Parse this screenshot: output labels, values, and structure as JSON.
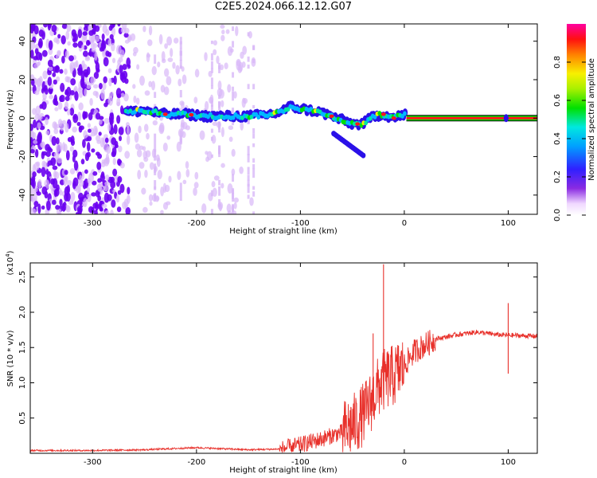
{
  "title": "C2E5.2024.066.12.12.G07",
  "colors": {
    "axis": "#000000",
    "snr_line": "#e8312b",
    "scatter_low": "#d8b8f8",
    "scatter_mid": "#6a00f0",
    "ridge": "#00b8ff",
    "peak": "#ff1818",
    "band_green": "#00e000"
  },
  "chart_data": [
    {
      "type": "heatmap",
      "name": "spectrogram",
      "xlabel": "Height of straight line (km)",
      "ylabel": "Frequency (Hz)",
      "xlim": [
        -360,
        128
      ],
      "ylim": [
        -50,
        49
      ],
      "x_ticks": [
        -300,
        -200,
        -100,
        0,
        100
      ],
      "y_ticks": [
        -40,
        -20,
        0,
        20,
        40
      ],
      "colorbar": {
        "label": "Normalized spectral amplitude",
        "range": [
          0,
          1
        ],
        "ticks": [
          "0.0",
          "0.2",
          "0.4",
          "0.6",
          "0.8"
        ],
        "tick_values": [
          0,
          0.2,
          0.4,
          0.6,
          0.8
        ],
        "colormap": "rainbow (violet to red)"
      },
      "ridge": {
        "x": [
          -268,
          -250,
          -230,
          -210,
          -190,
          -170,
          -150,
          -130,
          -120,
          -110,
          -100,
          -90,
          -80,
          -70,
          -60,
          -50,
          -40,
          -30,
          -20,
          -10,
          0,
          128
        ],
        "y": [
          3,
          4,
          2,
          2,
          1,
          1,
          1,
          2,
          3,
          6,
          5,
          4,
          3,
          1,
          -1,
          -3,
          -3,
          1,
          2,
          0,
          2,
          0
        ]
      },
      "grid": false
    },
    {
      "type": "line",
      "name": "snr",
      "xlabel": "Height of straight line (km)",
      "ylabel": "SNR (10 * v/v)",
      "y_multiplier": "(x10^4)",
      "xlim": [
        -360,
        128
      ],
      "ylim": [
        0,
        2.7
      ],
      "x_ticks": [
        -300,
        -200,
        -100,
        0,
        100
      ],
      "y_ticks": [
        0.5,
        1.0,
        1.5,
        2.0,
        2.5
      ],
      "x_anchor": [
        -360,
        -300,
        -250,
        -200,
        -150,
        -120,
        -100,
        -80,
        -60,
        -45,
        -35,
        -28,
        -22,
        -18,
        -10,
        0,
        10,
        30,
        50,
        70,
        90,
        110,
        128
      ],
      "y_anchor": [
        0.04,
        0.04,
        0.05,
        0.08,
        0.05,
        0.06,
        0.12,
        0.2,
        0.3,
        0.45,
        0.65,
        0.85,
        1.0,
        1.05,
        1.1,
        1.25,
        1.45,
        1.62,
        1.68,
        1.72,
        1.68,
        1.67,
        1.66
      ],
      "spikes": [
        {
          "x": -20,
          "y": 2.68
        },
        {
          "x": -30,
          "y": 1.7
        },
        {
          "x": 100,
          "y": 2.13
        },
        {
          "x": 100,
          "y": 1.13
        }
      ],
      "grid": false
    }
  ],
  "labels": {
    "spec_xlabel": "Height of straight line (km)",
    "spec_ylabel": "Frequency (Hz)",
    "cbar_label": "Normalized spectral amplitude",
    "snr_xlabel": "Height of straight line (km)",
    "snr_ylabel": "SNR (10 * v/v)",
    "snr_mult_base": "(x10",
    "snr_mult_exp": "4",
    "snr_mult_close": ")"
  }
}
